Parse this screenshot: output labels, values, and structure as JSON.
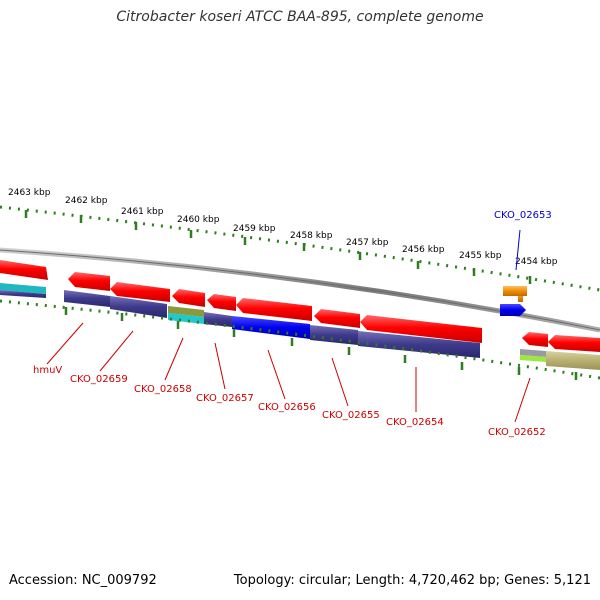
{
  "title": "Citrobacter koseri ATCC BAA-895, complete genome",
  "footer": {
    "accession": "Accession: NC_009792",
    "topology": "Topology: circular; Length: 4,720,462 bp; Genes: 5,121"
  },
  "scale_labels": [
    "2463 kbp",
    "2462 kbp",
    "2461 kbp",
    "2460 kbp",
    "2459 kbp",
    "2458 kbp",
    "2457 kbp",
    "2456 kbp",
    "2455 kbp",
    "2454 kbp"
  ],
  "gene_labels": [
    {
      "text": "hmuV",
      "color": "#cc0000"
    },
    {
      "text": "CKO_02659",
      "color": "#cc0000"
    },
    {
      "text": "CKO_02658",
      "color": "#cc0000"
    },
    {
      "text": "CKO_02657",
      "color": "#cc0000"
    },
    {
      "text": "CKO_02656",
      "color": "#cc0000"
    },
    {
      "text": "CKO_02655",
      "color": "#cc0000"
    },
    {
      "text": "CKO_02654",
      "color": "#cc0000"
    },
    {
      "text": "CKO_02652",
      "color": "#cc0000"
    },
    {
      "text": "CKO_02653",
      "color": "#0000cc"
    }
  ],
  "colors": {
    "gene": "#ff0000",
    "backbone": "#888888",
    "ticks": "#2e7d1e",
    "cog_dark": "#3e3a8a",
    "cog_blue": "#0000ee",
    "cog_olive": "#b8b070",
    "cog_orange": "#f08c00"
  }
}
